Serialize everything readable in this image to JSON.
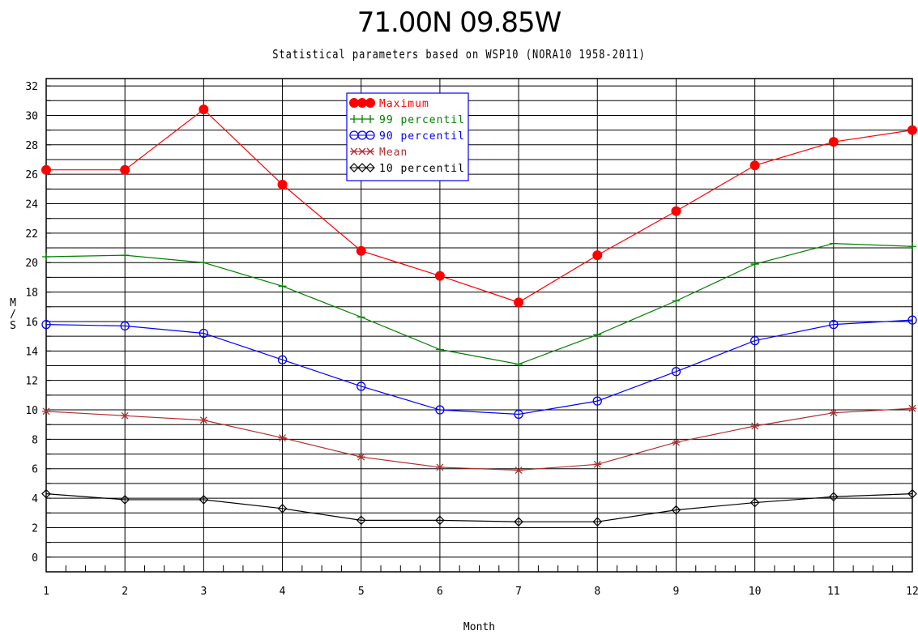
{
  "page": {
    "title": "71.00N   09.85W",
    "subtitle": "Statistical parameters based on WSP10 (NORA10 1958-2011)"
  },
  "chart_data": {
    "type": "line",
    "title": "71.00N   09.85W",
    "subtitle": "Statistical parameters based on WSP10 (NORA10 1958-2011)",
    "xlabel": "Month",
    "ylabel": "M/S",
    "xlim": [
      1,
      12
    ],
    "ylim": [
      -1,
      32.5
    ],
    "x": [
      1,
      2,
      3,
      4,
      5,
      6,
      7,
      8,
      9,
      10,
      11,
      12
    ],
    "xticks": [
      "1",
      "2",
      "3",
      "4",
      "5",
      "6",
      "7",
      "8",
      "9",
      "10",
      "11",
      "12"
    ],
    "yticks": [
      "0",
      "2",
      "4",
      "6",
      "8",
      "10",
      "12",
      "14",
      "16",
      "18",
      "20",
      "22",
      "24",
      "26",
      "28",
      "30",
      "32"
    ],
    "grid": true,
    "legend_position": "top-center",
    "series": [
      {
        "name": "Maximum",
        "color": "#ff0000",
        "marker": "filled-circle",
        "values": [
          26.3,
          26.3,
          30.4,
          25.3,
          20.8,
          19.1,
          17.3,
          20.5,
          23.5,
          26.6,
          28.2,
          29.0
        ]
      },
      {
        "name": "99 percentil",
        "color": "#008000",
        "marker": "plus",
        "values": [
          20.4,
          20.5,
          20.0,
          18.4,
          16.3,
          14.1,
          13.1,
          15.1,
          17.4,
          19.9,
          21.3,
          21.1
        ]
      },
      {
        "name": "90 percentil",
        "color": "#0000ff",
        "marker": "open-circle",
        "values": [
          15.8,
          15.7,
          15.2,
          13.4,
          11.6,
          10.0,
          9.7,
          10.6,
          12.6,
          14.7,
          15.8,
          16.1
        ]
      },
      {
        "name": "Mean",
        "color": "#b03030",
        "marker": "star",
        "values": [
          9.9,
          9.6,
          9.3,
          8.1,
          6.8,
          6.1,
          5.9,
          6.3,
          7.8,
          8.9,
          9.8,
          10.1
        ]
      },
      {
        "name": "10 percentil",
        "color": "#000000",
        "marker": "diamond",
        "values": [
          4.3,
          3.9,
          3.9,
          3.3,
          2.5,
          2.5,
          2.4,
          2.4,
          3.2,
          3.7,
          4.1,
          4.3
        ]
      }
    ]
  }
}
